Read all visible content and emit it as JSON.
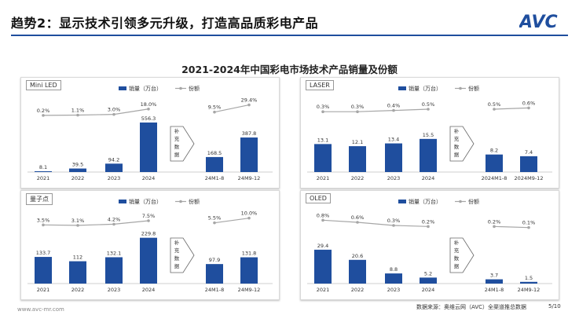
{
  "header": {
    "title": "趋势2：显示技术引领多元升级，打造高品质彩电产品",
    "logo_text": "AVC",
    "accent_color": "#1f4e9e"
  },
  "subtitle": "2021-2024年中国彩电市场技术产品销量及份额",
  "legend": {
    "bar_label": "销量（万台）",
    "line_label": "份额"
  },
  "supplement_label": "补充数据",
  "footer": {
    "website": "www.avc-mr.com",
    "source": "数据来源：奥维云网（AVC）全渠道推总数据",
    "page": "5/10"
  },
  "watermark_text": "奥维云网",
  "chart_data": [
    {
      "id": "miniled",
      "type": "bar",
      "label": "Mini LED",
      "categories": [
        "2021",
        "2022",
        "2023",
        "2024",
        "24M1-8",
        "24M9-12"
      ],
      "values": [
        8.1,
        39.5,
        94.2,
        556.3,
        168.5,
        387.8
      ],
      "value_labels": [
        "8.1",
        "39.5",
        "94.2",
        "556.3",
        "168.5",
        "387.8"
      ],
      "share_labels": [
        "0.2%",
        "1.1%",
        "3.0%",
        "18.0%",
        "9.5%",
        "29.4%"
      ],
      "share": [
        0.2,
        1.1,
        3.0,
        18.0,
        9.5,
        29.4
      ],
      "ylim": [
        0,
        600
      ],
      "share_lim": [
        0,
        35
      ],
      "bar_color": "#1f4e9e",
      "line_color": "#a6a6a6"
    },
    {
      "id": "laser",
      "type": "bar",
      "label": "LASER",
      "categories": [
        "2021",
        "2022",
        "2023",
        "2024",
        "2024M1-8",
        "2024M9-12"
      ],
      "values": [
        13.1,
        12.1,
        13.4,
        15.5,
        8.2,
        7.4
      ],
      "value_labels": [
        "13.1",
        "12.1",
        "13.4",
        "15.5",
        "8.2",
        "7.4"
      ],
      "share_labels": [
        "0.3%",
        "0.3%",
        "0.4%",
        "0.5%",
        "0.5%",
        "0.6%"
      ],
      "share": [
        0.3,
        0.3,
        0.4,
        0.5,
        0.5,
        0.6
      ],
      "ylim": [
        0,
        25
      ],
      "share_lim": [
        0,
        1
      ],
      "bar_color": "#1f4e9e",
      "line_color": "#a6a6a6"
    },
    {
      "id": "qd",
      "type": "bar",
      "label": "量子点",
      "categories": [
        "2021",
        "2022",
        "2023",
        "2024",
        "24M1-8",
        "24M9-12"
      ],
      "values": [
        133.7,
        112,
        132.1,
        229.8,
        97.9,
        131.8
      ],
      "value_labels": [
        "133.7",
        "112",
        "132.1",
        "229.8",
        "97.9",
        "131.8"
      ],
      "share_labels": [
        "3.5%",
        "3.1%",
        "4.2%",
        "7.5%",
        "5.5%",
        "10.0%"
      ],
      "share": [
        3.5,
        3.1,
        4.2,
        7.5,
        5.5,
        10.0
      ],
      "ylim": [
        0,
        260
      ],
      "share_lim": [
        0,
        12
      ],
      "bar_color": "#1f4e9e",
      "line_color": "#a6a6a6"
    },
    {
      "id": "oled",
      "type": "bar",
      "label": "OLED",
      "categories": [
        "2021",
        "2022",
        "2023",
        "2024",
        "24M1-8",
        "24M9-12"
      ],
      "values": [
        29.4,
        20.6,
        8.8,
        5.2,
        3.7,
        1.5
      ],
      "value_labels": [
        "29.4",
        "20.6",
        "8.8",
        "5.2",
        "3.7",
        "1.5"
      ],
      "share_labels": [
        "0.8%",
        "0.6%",
        "0.3%",
        "0.2%",
        "0.2%",
        "0.1%"
      ],
      "share": [
        0.8,
        0.6,
        0.3,
        0.2,
        0.2,
        0.1
      ],
      "ylim": [
        0,
        45
      ],
      "share_lim": [
        0,
        1.2
      ],
      "bar_color": "#1f4e9e",
      "line_color": "#a6a6a6"
    }
  ]
}
